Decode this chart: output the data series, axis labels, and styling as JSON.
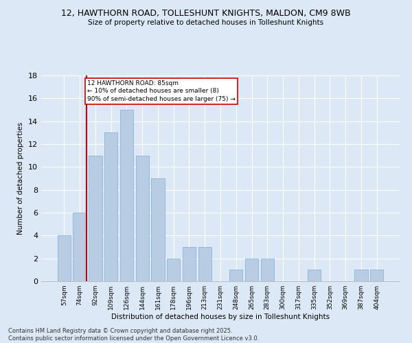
{
  "title_line1": "12, HAWTHORN ROAD, TOLLESHUNT KNIGHTS, MALDON, CM9 8WB",
  "title_line2": "Size of property relative to detached houses in Tolleshunt Knights",
  "xlabel": "Distribution of detached houses by size in Tolleshunt Knights",
  "ylabel": "Number of detached properties",
  "categories": [
    "57sqm",
    "74sqm",
    "92sqm",
    "109sqm",
    "126sqm",
    "144sqm",
    "161sqm",
    "178sqm",
    "196sqm",
    "213sqm",
    "231sqm",
    "248sqm",
    "265sqm",
    "283sqm",
    "300sqm",
    "317sqm",
    "335sqm",
    "352sqm",
    "369sqm",
    "387sqm",
    "404sqm"
  ],
  "values": [
    4,
    6,
    11,
    13,
    15,
    11,
    9,
    2,
    3,
    3,
    0,
    1,
    2,
    2,
    0,
    0,
    1,
    0,
    0,
    1,
    1
  ],
  "bar_color": "#b8cce4",
  "bar_edge_color": "#7bafd4",
  "annotation_text": "12 HAWTHORN ROAD: 85sqm\n← 10% of detached houses are smaller (8)\n90% of semi-detached houses are larger (75) →",
  "annotation_box_color": "#ffffff",
  "annotation_box_edge_color": "#cc0000",
  "reference_line_color": "#cc0000",
  "reference_line_x": 1.42,
  "ylim": [
    0,
    18
  ],
  "yticks": [
    0,
    2,
    4,
    6,
    8,
    10,
    12,
    14,
    16,
    18
  ],
  "footer_line1": "Contains HM Land Registry data © Crown copyright and database right 2025.",
  "footer_line2": "Contains public sector information licensed under the Open Government Licence v3.0.",
  "bg_color": "#dce8f5",
  "plot_bg_color": "#dce8f5",
  "grid_color": "#ffffff"
}
